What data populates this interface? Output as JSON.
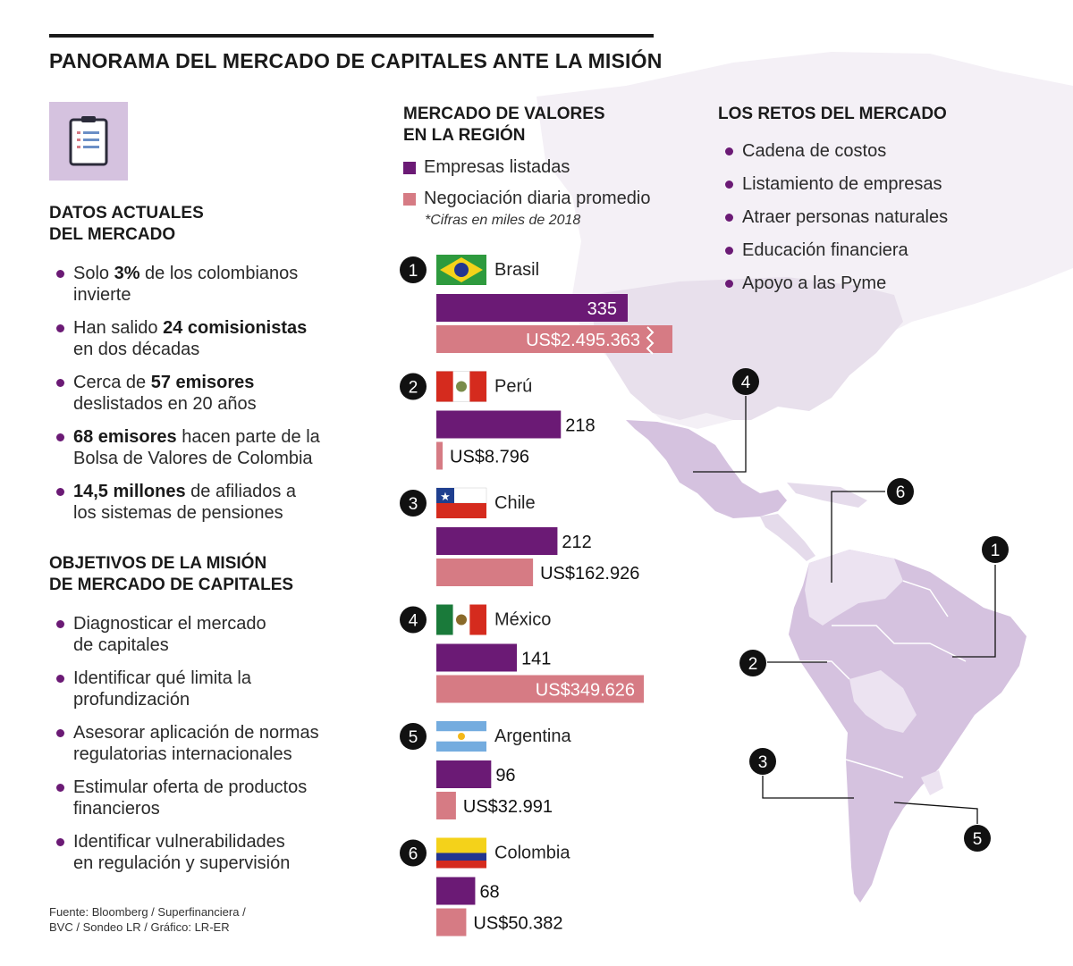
{
  "title": "PANORAMA DEL MERCADO DE CAPITALES ANTE LA MISIÓN",
  "icons": {
    "clipboard": "clipboard-icon"
  },
  "colors": {
    "purple": "#6b1a75",
    "pink": "#d67b84",
    "map": "#d5c2df",
    "map_light": "#ece3f1",
    "bullet": "#6b1a75"
  },
  "datos": {
    "title_line1": "DATOS ACTUALES",
    "title_line2": "DEL MERCADO",
    "items": [
      {
        "pre": "Solo ",
        "bold": "3%",
        "post": " de los colombianos",
        "line2": "invierte"
      },
      {
        "pre": "Han salido ",
        "bold": "24 comisionistas",
        "post": "",
        "line2": "en dos décadas"
      },
      {
        "pre": "Cerca de ",
        "bold": "57 emisores",
        "post": "",
        "line2": "deslistados en 20 años"
      },
      {
        "pre": "",
        "bold": "68 emisores",
        "post": " hacen parte de la",
        "line2": "Bolsa de Valores de Colombia"
      },
      {
        "pre": "",
        "bold": "14,5 millones",
        "post": " de afiliados a",
        "line2": "los sistemas de pensiones"
      }
    ]
  },
  "objetivos": {
    "title_line1": "OBJETIVOS DE LA MISIÓN",
    "title_line2": "DE MERCADO DE CAPITALES",
    "items": [
      {
        "line1": "Diagnosticar el mercado",
        "line2": "de capitales"
      },
      {
        "line1": "Identificar qué limita la",
        "line2": "profundización"
      },
      {
        "line1": "Asesorar aplicación de normas",
        "line2": "regulatorias internacionales"
      },
      {
        "line1": "Estimular oferta de productos",
        "line2": "financieros"
      },
      {
        "line1": "Identificar vulnerabilidades",
        "line2": "en regulación y supervisión"
      }
    ]
  },
  "mercado": {
    "title_line1": "MERCADO DE VALORES",
    "title_line2": "EN LA REGIÓN",
    "legend_listed": "Empresas listadas",
    "legend_trading": "Negociación diaria promedio",
    "footnote": "*Cifras en miles de 2018"
  },
  "retos": {
    "title": "LOS RETOS DEL MERCADO",
    "items": [
      "Cadena de costos",
      "Listamiento de empresas",
      "Atraer personas naturales",
      "Educación financiera",
      "Apoyo a las Pyme"
    ]
  },
  "source_line1": "Fuente: Bloomberg / Superfinanciera /",
  "source_line2": "BVC / Sondeo LR / Gráfico: LR-ER",
  "chart_data": {
    "type": "bar",
    "title": "MERCADO DE VALORES EN LA REGIÓN",
    "orientation": "horizontal",
    "legend_placement": "top",
    "grid": false,
    "categories": [
      "Brasil",
      "Perú",
      "Chile",
      "México",
      "Argentina",
      "Colombia"
    ],
    "ranks": [
      "1",
      "2",
      "3",
      "4",
      "5",
      "6"
    ],
    "flags": [
      "brazil-flag-icon",
      "peru-flag-icon",
      "chile-flag-icon",
      "mexico-flag-icon",
      "argentina-flag-icon",
      "colombia-flag-icon"
    ],
    "series": [
      {
        "name": "Empresas listadas",
        "color": "#6b1a75",
        "values": [
          335,
          218,
          212,
          141,
          96,
          68
        ],
        "labels": [
          "335",
          "218",
          "212",
          "141",
          "96",
          "68"
        ]
      },
      {
        "name": "Negociación diaria promedio",
        "color": "#d67b84",
        "values": [
          2495363,
          8796,
          162926,
          349626,
          32991,
          50382
        ],
        "labels": [
          "US$2.495.363",
          "US$8.796",
          "US$162.926",
          "US$349.626",
          "US$32.991",
          "US$50.382"
        ],
        "unit": "US$ miles (2018)",
        "broken_axis_for": [
          "Brasil"
        ]
      }
    ],
    "map_callouts": [
      "1",
      "2",
      "3",
      "4",
      "5",
      "6"
    ]
  }
}
